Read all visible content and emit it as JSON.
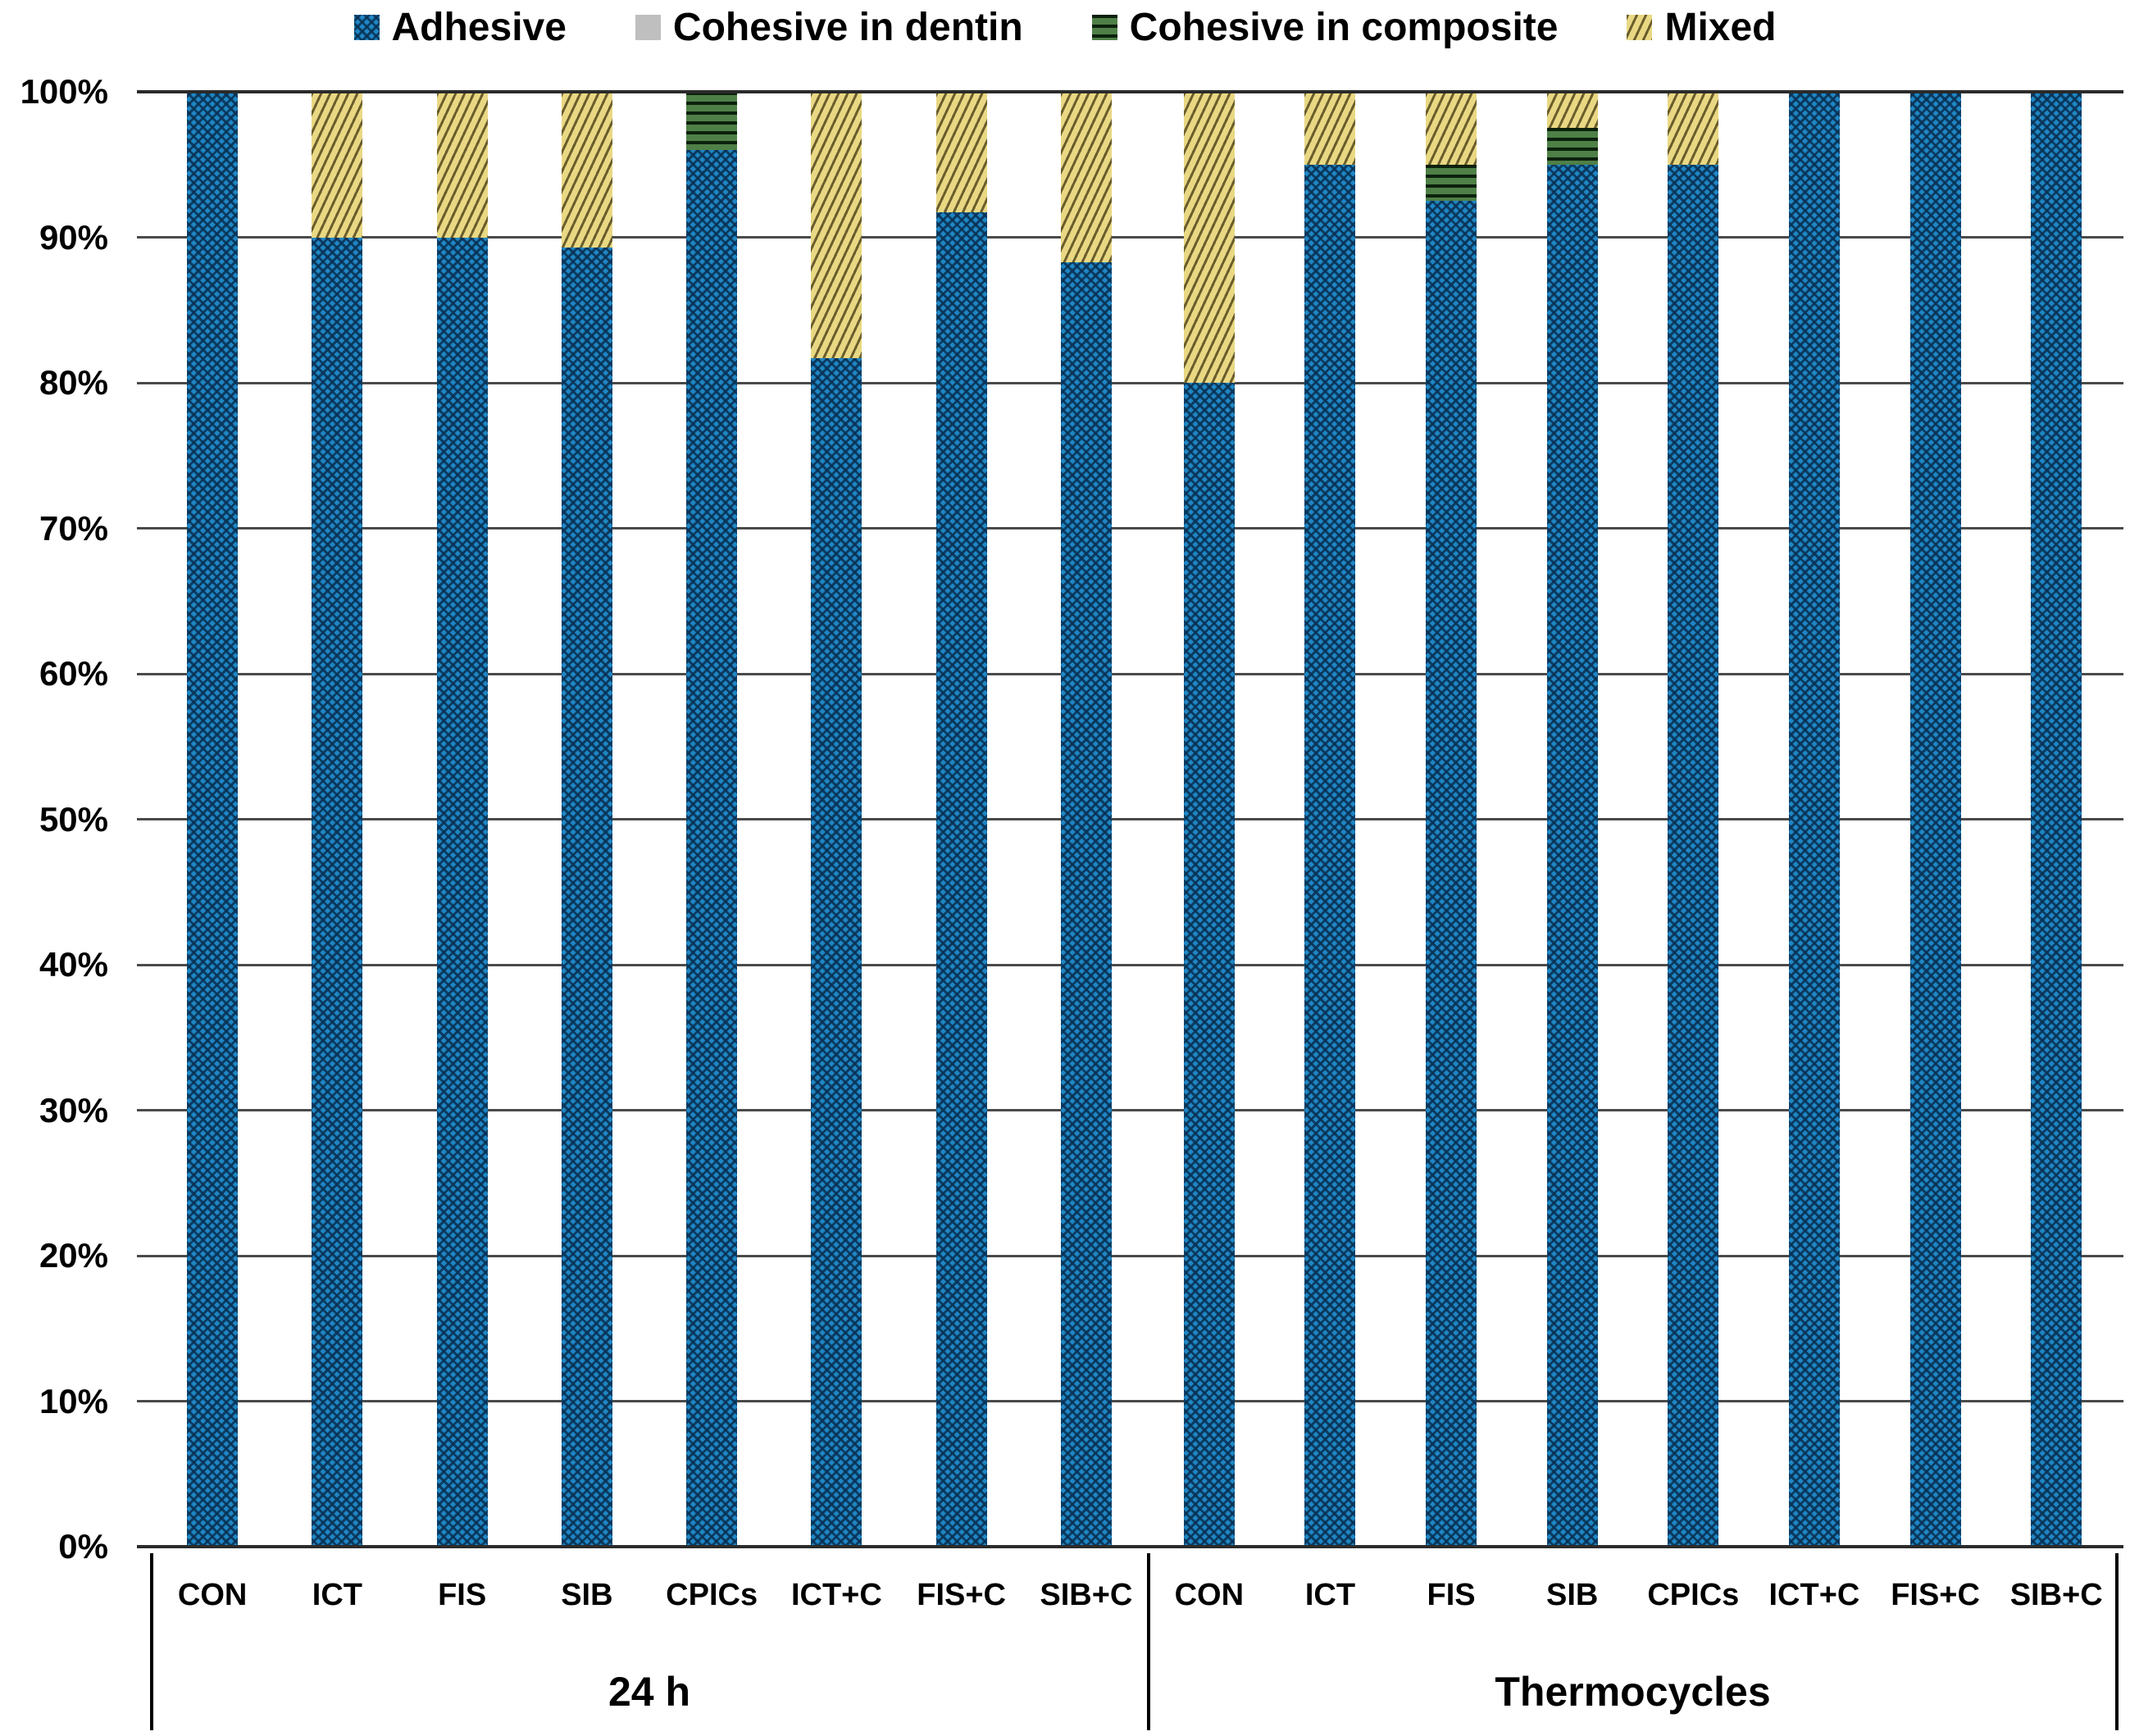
{
  "legend": {
    "items": [
      {
        "label": "Adhesive",
        "pattern": "adhesive",
        "color": "#1f86c4",
        "hatch": "zigzag-weave",
        "hatch_color": "#0b3e63"
      },
      {
        "label": "Cohesive in dentin",
        "pattern": "dentin",
        "color": "#bfbfbf",
        "hatch": "solid",
        "hatch_color": "#bfbfbf"
      },
      {
        "label": "Cohesive in composite",
        "pattern": "composite",
        "color": "#4f8047",
        "hatch": "horizontal-stripes",
        "hatch_color": "#081c0a"
      },
      {
        "label": "Mixed",
        "pattern": "mixed",
        "color": "#e9d883",
        "hatch": "diagonal-stripes",
        "hatch_color": "#5c5022"
      }
    ],
    "position": "top"
  },
  "chart_data": {
    "type": "bar",
    "subtype": "stacked-100-percent",
    "title": "",
    "xlabel": "",
    "ylabel": "",
    "ylim": [
      0,
      100
    ],
    "grid": true,
    "yticks_top_to_bottom": [
      "100%",
      "90%",
      "80%",
      "70%",
      "60%",
      "50%",
      "40%",
      "30%",
      "20%",
      "10%",
      "0%"
    ],
    "series_order": [
      "Adhesive",
      "Cohesive in dentin",
      "Cohesive in composite",
      "Mixed"
    ],
    "groups": [
      {
        "group": "24 h",
        "categories": [
          "CON",
          "ICT",
          "FIS",
          "SIB",
          "CPICs",
          "ICT+C",
          "FIS+C",
          "SIB+C"
        ],
        "series": [
          {
            "name": "Adhesive",
            "values": [
              100,
              90,
              90,
              89.3,
              96,
              81.7,
              91.7,
              88.3
            ]
          },
          {
            "name": "Cohesive in dentin",
            "values": [
              0,
              0,
              0,
              0,
              0,
              0,
              0,
              0
            ]
          },
          {
            "name": "Cohesive in composite",
            "values": [
              0,
              0,
              0,
              0,
              4,
              0,
              0,
              0
            ]
          },
          {
            "name": "Mixed",
            "values": [
              0,
              10,
              10,
              10.7,
              0,
              18.3,
              8.3,
              11.7
            ]
          }
        ]
      },
      {
        "group": "Thermocycles",
        "categories": [
          "CON",
          "ICT",
          "FIS",
          "SIB",
          "CPICs",
          "ICT+C",
          "FIS+C",
          "SIB+C"
        ],
        "series": [
          {
            "name": "Adhesive",
            "values": [
              80,
              95,
              92.5,
              95,
              95,
              100,
              100,
              100
            ]
          },
          {
            "name": "Cohesive in dentin",
            "values": [
              0,
              0,
              0,
              0,
              0,
              0,
              0,
              0
            ]
          },
          {
            "name": "Cohesive in composite",
            "values": [
              0,
              0,
              2.5,
              2.5,
              0,
              0,
              0,
              0
            ]
          },
          {
            "name": "Mixed",
            "values": [
              20,
              5,
              5,
              2.5,
              5,
              0,
              0,
              0
            ]
          }
        ]
      }
    ],
    "gridline_color": "#4a4a4a",
    "axis_text_color": "#000000"
  }
}
